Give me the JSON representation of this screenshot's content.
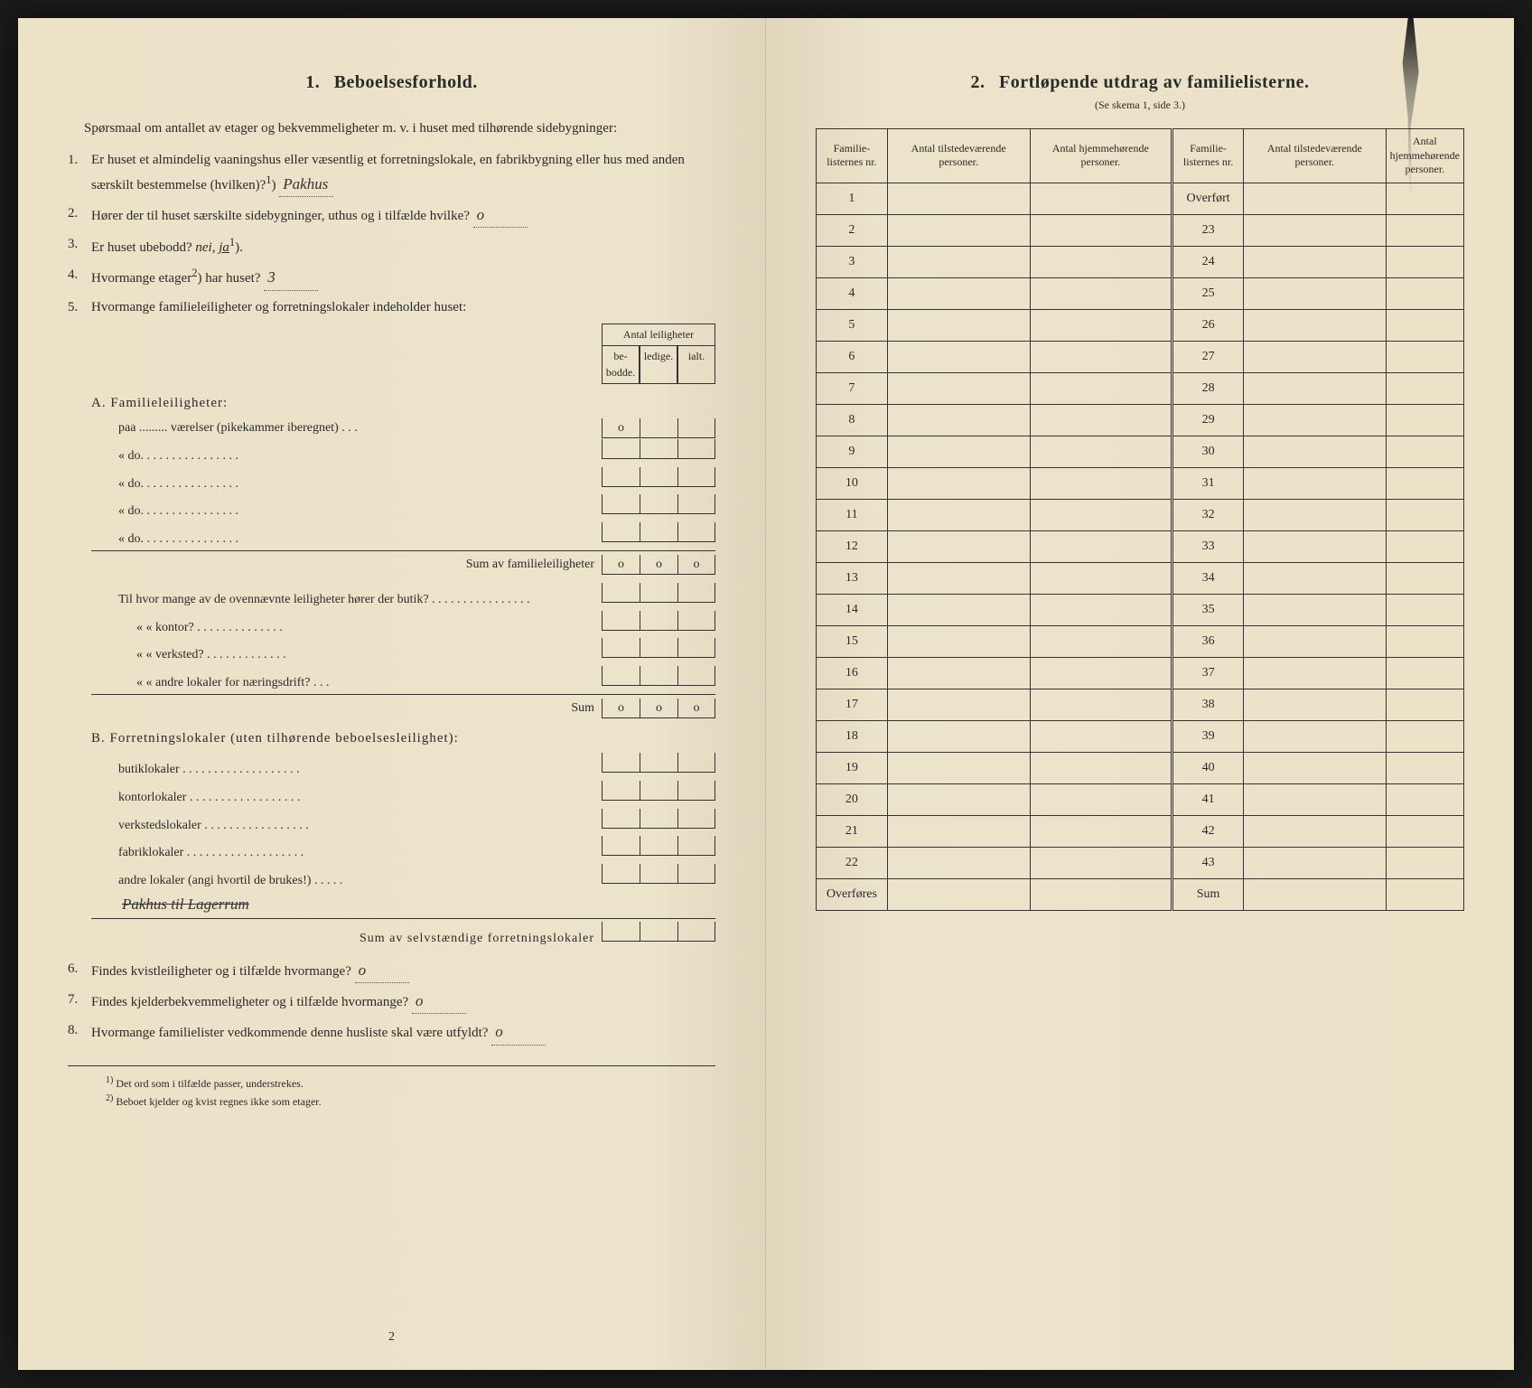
{
  "left": {
    "title_num": "1.",
    "title": "Beboelsesforhold.",
    "intro": "Spørsmaal om antallet av etager og bekvemmeligheter m. v. i huset med tilhørende sidebygninger:",
    "q1_num": "1.",
    "q1": "Er huset et almindelig vaaningshus eller væsentlig et forretningslokale, en fabrikbygning eller hus med anden særskilt bestemmelse (hvilken)?",
    "q1_sup": "1",
    "q1_answer": "Pakhus",
    "q2_num": "2.",
    "q2": "Hører der til huset særskilte sidebygninger, uthus og i tilfælde hvilke?",
    "q2_answer": "o",
    "q3_num": "3.",
    "q3_a": "Er huset ubebodd?",
    "q3_nei": "nei,",
    "q3_ja": "ja",
    "q3_sup": "1",
    "q4_num": "4.",
    "q4": "Hvormange etager",
    "q4_sup": "2",
    "q4_b": " har huset?",
    "q4_answer": "3",
    "q5_num": "5.",
    "q5": "Hvormange familieleiligheter og forretningslokaler indeholder huset:",
    "tbl_header": "Antal leiligheter",
    "tbl_c1": "be-bodde.",
    "tbl_c2": "ledige.",
    "tbl_c3": "ialt.",
    "secA": "A. Familieleiligheter:",
    "rowA1": "paa ......... værelser (pikekammer iberegnet) . . .",
    "rowA1_v": "o",
    "rowA_do": "«        do.        . . . . . . . . . . . . . . .",
    "rowA_sum": "Sum av familieleiligheter",
    "sum_o": "o",
    "blockB_intro": "Til hvor mange av de ovennævnte leiligheter hører der butik? . . . . . . . . . . . . . . . .",
    "blockB_kontor": "«    «  kontor? . . . . . . . . . . . . . .",
    "blockB_verk": "«    «  verksted? . . . . . . . . . . . . .",
    "blockB_andre": "«    «  andre lokaler for næringsdrift?  . . .",
    "blockB_sum": "Sum",
    "secB": "B. Forretningslokaler (uten tilhørende beboelsesleilighet):",
    "rowB1": "butiklokaler . . . . . . . . . . . . . . . . . . .",
    "rowB2": "kontorlokaler . . . . . . . . . . . . . . . . . .",
    "rowB3": "verkstedslokaler . . . . . . . . . . . . . . . . .",
    "rowB4": "fabriklokaler . . . . . . . . . . . . . . . . . . .",
    "rowB5": "andre lokaler (angi hvortil de brukes!) . . . . .",
    "rowB5_hand": "Pakhus til Lagerrum",
    "rowB_sum": "Sum av selvstændige forretningslokaler",
    "q6_num": "6.",
    "q6": "Findes kvistleiligheter og i tilfælde hvormange?",
    "q6_answer": "o",
    "q7_num": "7.",
    "q7": "Findes kjelderbekvemmeligheter og i tilfælde hvormange?",
    "q7_answer": "o",
    "q8_num": "8.",
    "q8": "Hvormange familielister vedkommende denne husliste skal være utfyldt?",
    "q8_answer": "o",
    "fn1_mark": "1)",
    "fn1": "Det ord som i tilfælde passer, understrekes.",
    "fn2_mark": "2)",
    "fn2": "Beboet kjelder og kvist regnes ikke som etager.",
    "pagenum": "2"
  },
  "right": {
    "title_num": "2.",
    "title": "Fortløpende utdrag av familielisterne.",
    "subtitle": "(Se skema 1, side 3.)",
    "h1": "Familie-listernes nr.",
    "h2": "Antal tilstedeværende personer.",
    "h3": "Antal hjemmehørende personer.",
    "h4": "Familie-listernes nr.",
    "h5": "Antal tilstedeværende personer.",
    "h6": "Antal hjemmehørende personer.",
    "overfort": "Overført",
    "overfores": "Overføres",
    "sum": "Sum",
    "rows_left": [
      "1",
      "2",
      "3",
      "4",
      "5",
      "6",
      "7",
      "8",
      "9",
      "10",
      "11",
      "12",
      "13",
      "14",
      "15",
      "16",
      "17",
      "18",
      "19",
      "20",
      "21",
      "22"
    ],
    "rows_right": [
      "23",
      "24",
      "25",
      "26",
      "27",
      "28",
      "29",
      "30",
      "31",
      "32",
      "33",
      "34",
      "35",
      "36",
      "37",
      "38",
      "39",
      "40",
      "41",
      "42",
      "43"
    ]
  },
  "style": {
    "paper_bg": "#ece3cb",
    "ink": "#2a2a28",
    "handwriting_color": "#333",
    "border_color": "#333"
  }
}
